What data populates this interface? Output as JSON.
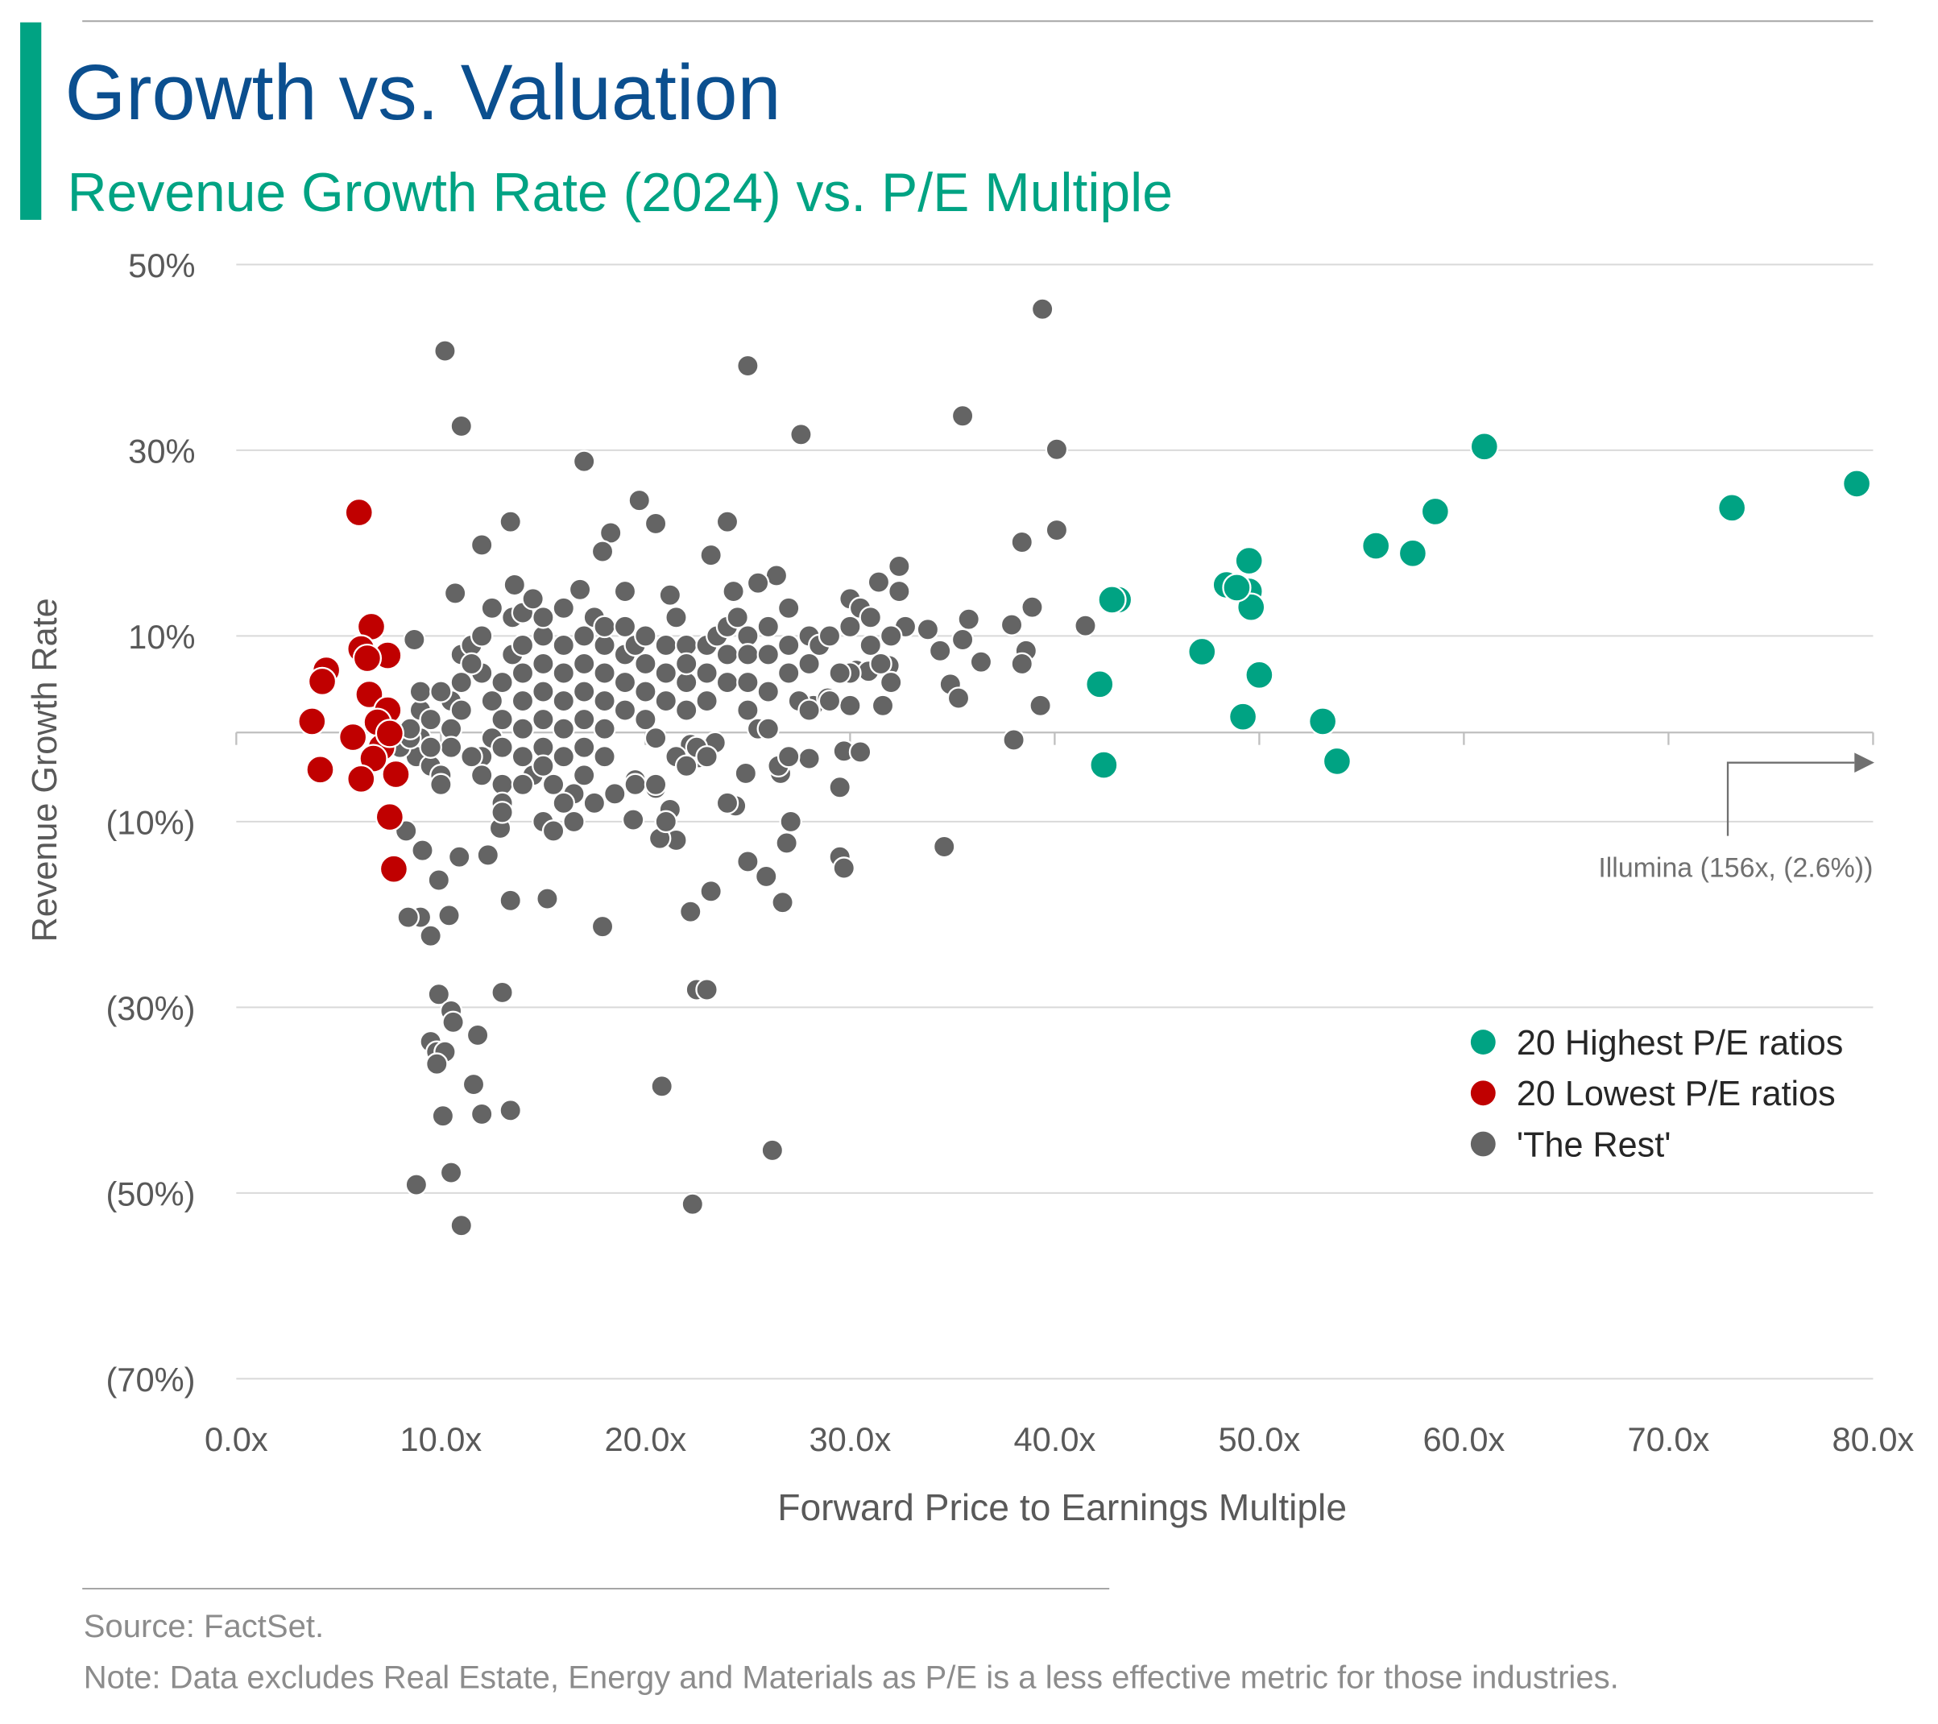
{
  "header": {
    "title": "Growth vs. Valuation",
    "subtitle": "Revenue Growth Rate (2024) vs. P/E Multiple"
  },
  "colors": {
    "title": "#0b4f8f",
    "accent": "#00a383",
    "highest": "#00a383",
    "lowest": "#c00000",
    "rest": "#646464"
  },
  "chart_data": {
    "type": "scatter",
    "title": "Revenue Growth Rate (2024) vs. P/E Multiple",
    "xlabel": "Forward Price to Earnings Multiple",
    "ylabel": "Revenue Growth Rate",
    "xlim": [
      0,
      80
    ],
    "ylim": [
      -70,
      50
    ],
    "x_ticks": [
      0,
      10,
      20,
      30,
      40,
      50,
      60,
      70,
      80
    ],
    "x_tick_labels": [
      "0.0x",
      "10.0x",
      "20.0x",
      "30.0x",
      "40.0x",
      "50.0x",
      "60.0x",
      "70.0x",
      "80.0x"
    ],
    "y_ticks": [
      50,
      30,
      10,
      -10,
      -30,
      -50,
      -70
    ],
    "y_tick_labels": [
      "50%",
      "30%",
      "10%",
      "(10%)",
      "(30%)",
      "(50%)",
      "(70%)"
    ],
    "grid": true,
    "legend_position": "bottom-right",
    "annotation": {
      "text": "Illumina (156x, (2.6%))",
      "x": 156,
      "y": -2.6
    },
    "series": [
      {
        "name": "20 Highest P/E ratios",
        "color": "#00a383",
        "points": [
          [
            61.0,
            30.4
          ],
          [
            79.2,
            26.4
          ],
          [
            73.1,
            23.8
          ],
          [
            58.6,
            23.4
          ],
          [
            55.7,
            19.7
          ],
          [
            57.5,
            18.9
          ],
          [
            49.5,
            18.1
          ],
          [
            48.4,
            15.5
          ],
          [
            49.5,
            14.8
          ],
          [
            49.6,
            13.1
          ],
          [
            43.1,
            13.9
          ],
          [
            42.8,
            13.9
          ],
          [
            47.2,
            8.3
          ],
          [
            50.0,
            5.8
          ],
          [
            42.2,
            4.8
          ],
          [
            49.2,
            1.3
          ],
          [
            53.1,
            0.8
          ],
          [
            42.4,
            -3.9
          ],
          [
            53.8,
            -3.5
          ],
          [
            48.9,
            15.2
          ]
        ]
      },
      {
        "name": "20 Lowest P/E ratios",
        "color": "#c00000",
        "points": [
          [
            6.0,
            23.3
          ],
          [
            6.6,
            11.0
          ],
          [
            7.4,
            7.9
          ],
          [
            6.1,
            8.6
          ],
          [
            4.4,
            6.3
          ],
          [
            4.2,
            5.1
          ],
          [
            6.5,
            3.7
          ],
          [
            3.7,
            0.8
          ],
          [
            7.4,
            2.0
          ],
          [
            6.9,
            0.7
          ],
          [
            5.7,
            -0.9
          ],
          [
            7.1,
            -2.0
          ],
          [
            6.7,
            -3.2
          ],
          [
            4.1,
            -4.4
          ],
          [
            6.1,
            -5.4
          ],
          [
            7.8,
            -4.9
          ],
          [
            7.5,
            -9.5
          ],
          [
            7.7,
            -15.1
          ],
          [
            7.5,
            -0.5
          ],
          [
            6.4,
            7.6
          ]
        ]
      },
      {
        "name": "'The Rest'",
        "color": "#646464",
        "points": [
          [
            10.2,
            40.7
          ],
          [
            11.0,
            32.6
          ],
          [
            25.0,
            39.1
          ],
          [
            27.6,
            31.7
          ],
          [
            39.4,
            45.2
          ],
          [
            35.5,
            33.7
          ],
          [
            40.1,
            30.1
          ],
          [
            17.0,
            28.8
          ],
          [
            19.7,
            24.6
          ],
          [
            20.5,
            22.1
          ],
          [
            24.0,
            22.3
          ],
          [
            13.4,
            22.3
          ],
          [
            18.3,
            21.1
          ],
          [
            12.0,
            19.8
          ],
          [
            17.9,
            19.1
          ],
          [
            23.2,
            18.7
          ],
          [
            38.4,
            20.1
          ],
          [
            40.1,
            21.4
          ],
          [
            32.4,
            17.5
          ],
          [
            10.7,
            14.6
          ],
          [
            13.6,
            15.5
          ],
          [
            16.8,
            15.0
          ],
          [
            19.0,
            14.8
          ],
          [
            21.2,
            14.4
          ],
          [
            26.4,
            16.5
          ],
          [
            25.5,
            15.7
          ],
          [
            24.3,
            14.8
          ],
          [
            32.4,
            14.8
          ],
          [
            31.4,
            15.8
          ],
          [
            38.9,
            13.1
          ],
          [
            41.5,
            11.1
          ],
          [
            35.8,
            11.8
          ],
          [
            37.9,
            11.2
          ],
          [
            32.7,
            11.0
          ],
          [
            33.8,
            10.7
          ],
          [
            35.5,
            9.6
          ],
          [
            34.4,
            8.4
          ],
          [
            36.4,
            7.2
          ],
          [
            38.6,
            8.4
          ],
          [
            38.4,
            7.0
          ],
          [
            34.9,
            4.8
          ],
          [
            35.3,
            3.3
          ],
          [
            39.3,
            2.5
          ],
          [
            38.0,
            -1.2
          ],
          [
            34.6,
            -12.7
          ],
          [
            28.2,
            2.5
          ],
          [
            28.9,
            3.3
          ],
          [
            30.0,
            2.5
          ],
          [
            31.6,
            2.5
          ],
          [
            30.3,
            6.3
          ],
          [
            30.9,
            6.2
          ],
          [
            31.9,
            6.8
          ],
          [
            29.7,
            -2.4
          ],
          [
            30.5,
            -2.5
          ],
          [
            29.5,
            -6.3
          ],
          [
            29.5,
            -13.8
          ],
          [
            29.7,
            -15.0
          ],
          [
            27.1,
            -10.0
          ],
          [
            26.9,
            -12.3
          ],
          [
            26.7,
            -18.7
          ],
          [
            25.9,
            -15.9
          ],
          [
            25.0,
            -14.3
          ],
          [
            24.4,
            -8.3
          ],
          [
            24.9,
            -4.8
          ],
          [
            26.6,
            -4.8
          ],
          [
            28.0,
            -3.2
          ],
          [
            23.4,
            -1.5
          ],
          [
            22.6,
            -3.1
          ],
          [
            22.2,
            -1.7
          ],
          [
            21.5,
            -12.0
          ],
          [
            20.7,
            -11.8
          ],
          [
            21.2,
            -8.7
          ],
          [
            20.5,
            -6.4
          ],
          [
            19.5,
            -5.5
          ],
          [
            19.4,
            -9.8
          ],
          [
            23.2,
            -17.5
          ],
          [
            22.2,
            -19.7
          ],
          [
            17.9,
            -21.3
          ],
          [
            15.2,
            -18.3
          ],
          [
            13.4,
            -18.5
          ],
          [
            12.3,
            -13.6
          ],
          [
            12.9,
            -10.7
          ],
          [
            10.9,
            -13.8
          ],
          [
            9.9,
            -16.3
          ],
          [
            10.4,
            -20.1
          ],
          [
            9.0,
            -20.3
          ],
          [
            8.4,
            -20.3
          ],
          [
            9.5,
            -22.3
          ],
          [
            9.1,
            -13.1
          ],
          [
            8.3,
            -11.0
          ],
          [
            13.0,
            -28.4
          ],
          [
            22.5,
            -28.1
          ],
          [
            23.0,
            -28.1
          ],
          [
            9.9,
            -28.6
          ],
          [
            10.5,
            -30.4
          ],
          [
            10.6,
            -31.6
          ],
          [
            11.8,
            -33.0
          ],
          [
            9.5,
            -33.7
          ],
          [
            9.8,
            -34.8
          ],
          [
            10.2,
            -34.8
          ],
          [
            9.8,
            -36.1
          ],
          [
            11.6,
            -38.3
          ],
          [
            13.4,
            -41.1
          ],
          [
            12.0,
            -41.5
          ],
          [
            10.1,
            -41.7
          ],
          [
            20.8,
            -38.5
          ],
          [
            26.2,
            -45.4
          ],
          [
            10.5,
            -47.8
          ],
          [
            8.8,
            -49.1
          ],
          [
            22.3,
            -51.2
          ],
          [
            11.0,
            -53.5
          ],
          [
            8.7,
            9.6
          ],
          [
            9,
            2
          ],
          [
            9.5,
            1
          ],
          [
            9,
            -1
          ],
          [
            8.8,
            -3
          ],
          [
            9.5,
            -4
          ],
          [
            10,
            -5
          ],
          [
            10.5,
            0
          ],
          [
            10.5,
            3
          ],
          [
            11,
            5
          ],
          [
            11,
            8
          ],
          [
            11.5,
            9
          ],
          [
            12,
            10
          ],
          [
            12,
            6
          ],
          [
            12.5,
            3
          ],
          [
            12.5,
            -1
          ],
          [
            12,
            -3
          ],
          [
            13,
            -2
          ],
          [
            13,
            1
          ],
          [
            13,
            5
          ],
          [
            13.5,
            8
          ],
          [
            13.5,
            12
          ],
          [
            14,
            12.5
          ],
          [
            14,
            9
          ],
          [
            14,
            6
          ],
          [
            14,
            3
          ],
          [
            14,
            0
          ],
          [
            14,
            -3
          ],
          [
            14.5,
            -5
          ],
          [
            13,
            -6
          ],
          [
            13,
            -8
          ],
          [
            15,
            10
          ],
          [
            15,
            7
          ],
          [
            15,
            4
          ],
          [
            15,
            1
          ],
          [
            15,
            -2
          ],
          [
            15,
            -4
          ],
          [
            15.5,
            -6
          ],
          [
            16,
            13
          ],
          [
            16,
            9
          ],
          [
            16,
            6
          ],
          [
            16,
            3
          ],
          [
            16,
            0
          ],
          [
            16,
            -3
          ],
          [
            16.5,
            -7
          ],
          [
            16.5,
            -10
          ],
          [
            17,
            10
          ],
          [
            17,
            7
          ],
          [
            17,
            4
          ],
          [
            17,
            1
          ],
          [
            17,
            -2
          ],
          [
            17,
            -5
          ],
          [
            17.5,
            12
          ],
          [
            18,
            9
          ],
          [
            18,
            6
          ],
          [
            18,
            3
          ],
          [
            18,
            0
          ],
          [
            18,
            -3
          ],
          [
            18.5,
            -7
          ],
          [
            19,
            8
          ],
          [
            19,
            5
          ],
          [
            19,
            2
          ],
          [
            19.5,
            9
          ],
          [
            20,
            7
          ],
          [
            20,
            4
          ],
          [
            20,
            1
          ],
          [
            20.5,
            -1
          ],
          [
            21,
            9
          ],
          [
            21,
            6
          ],
          [
            21,
            3
          ],
          [
            21.5,
            -3
          ],
          [
            21.5,
            12
          ],
          [
            22,
            9
          ],
          [
            22,
            5
          ],
          [
            22,
            2
          ],
          [
            22.5,
            -2
          ],
          [
            23,
            9
          ],
          [
            23,
            6
          ],
          [
            23,
            3
          ],
          [
            23.5,
            10
          ],
          [
            24,
            11
          ],
          [
            24,
            8
          ],
          [
            24,
            5
          ],
          [
            24.5,
            12
          ],
          [
            25,
            10
          ],
          [
            25,
            8
          ],
          [
            25,
            5
          ],
          [
            25,
            2
          ],
          [
            25.5,
            0
          ],
          [
            26,
            11
          ],
          [
            26,
            8
          ],
          [
            26,
            4
          ],
          [
            26,
            0
          ],
          [
            26.5,
            -4
          ],
          [
            27,
            13
          ],
          [
            27,
            9
          ],
          [
            27,
            6
          ],
          [
            27.5,
            3
          ],
          [
            28,
            10
          ],
          [
            28,
            7
          ],
          [
            28.5,
            9
          ],
          [
            29,
            10
          ],
          [
            29,
            3
          ],
          [
            30,
            14
          ],
          [
            30,
            11
          ],
          [
            30,
            6
          ],
          [
            30.5,
            13
          ],
          [
            31,
            12
          ],
          [
            31,
            9
          ],
          [
            31.5,
            7
          ],
          [
            32,
            10
          ],
          [
            32,
            5
          ],
          [
            11.5,
            -3
          ],
          [
            10.5,
            -2
          ],
          [
            9,
            4
          ],
          [
            10,
            4
          ],
          [
            11,
            2
          ],
          [
            12,
            -5
          ],
          [
            18,
            11
          ],
          [
            19,
            11
          ],
          [
            20,
            10
          ],
          [
            15,
            12
          ],
          [
            14.5,
            14
          ],
          [
            12.5,
            13
          ],
          [
            11.5,
            7
          ],
          [
            10,
            -6
          ],
          [
            8,
            -2
          ],
          [
            8.5,
            -1
          ],
          [
            17.5,
            -8
          ],
          [
            16,
            -8
          ],
          [
            15,
            -10
          ],
          [
            19.5,
            -6
          ],
          [
            20.5,
            -6
          ],
          [
            23,
            -3
          ],
          [
            24,
            -8
          ],
          [
            22,
            -4
          ],
          [
            21,
            -10
          ],
          [
            27,
            -3
          ],
          [
            22,
            7
          ],
          [
            29.5,
            6
          ],
          [
            28,
            2
          ],
          [
            8.5,
            0
          ],
          [
            9.5,
            -2
          ],
          [
            13,
            -9
          ],
          [
            14,
            -6
          ],
          [
            15.5,
            -11
          ]
        ]
      }
    ]
  },
  "footer": {
    "source": "Source: FactSet.",
    "note": "Note: Data excludes Real Estate, Energy and Materials as P/E is a less effective metric for those industries."
  }
}
